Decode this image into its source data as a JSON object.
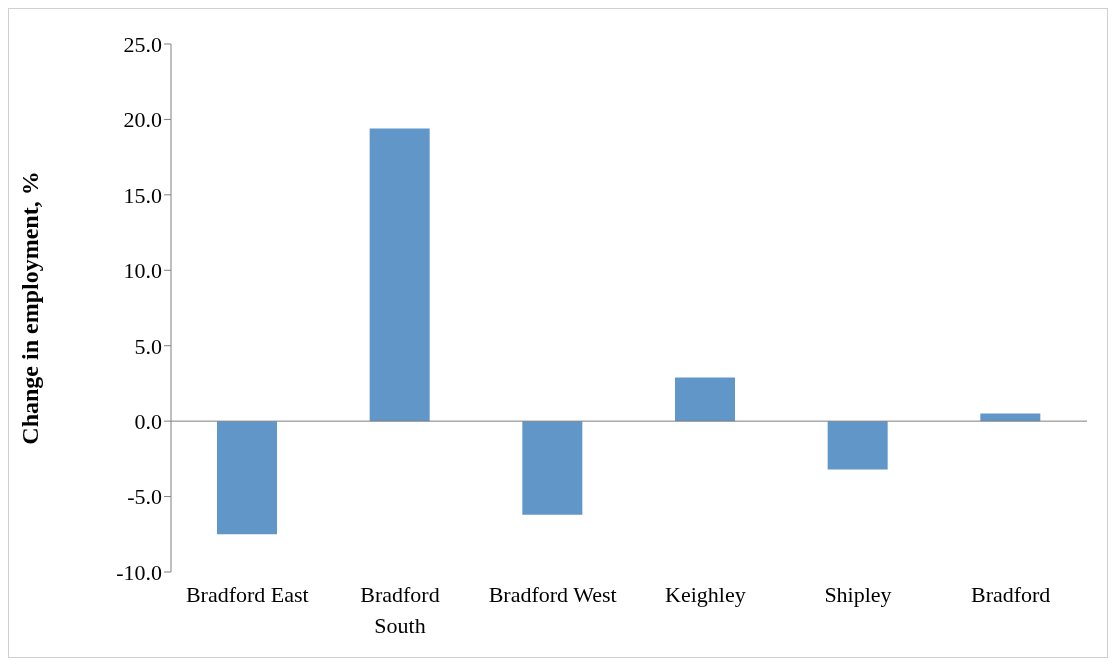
{
  "chart_data": {
    "type": "bar",
    "ylabel": "Change in employment, %",
    "categories": [
      "Bradford East",
      "Bradford South",
      "Bradford West",
      "Keighley",
      "Shipley",
      "Bradford"
    ],
    "values": [
      -7.5,
      19.4,
      -6.2,
      2.9,
      -3.2,
      0.5
    ],
    "color": "#6096c8",
    "ylim": [
      -10,
      25
    ],
    "yticks": [
      {
        "value": -10,
        "label": "-10.0"
      },
      {
        "value": -5,
        "label": "-5.0"
      },
      {
        "value": 0,
        "label": "0.0"
      },
      {
        "value": 5,
        "label": "5.0"
      },
      {
        "value": 10,
        "label": "10.0"
      },
      {
        "value": 15,
        "label": "15.0"
      },
      {
        "value": 20,
        "label": "20.0"
      },
      {
        "value": 25,
        "label": "25.0"
      }
    ],
    "legend": false
  }
}
